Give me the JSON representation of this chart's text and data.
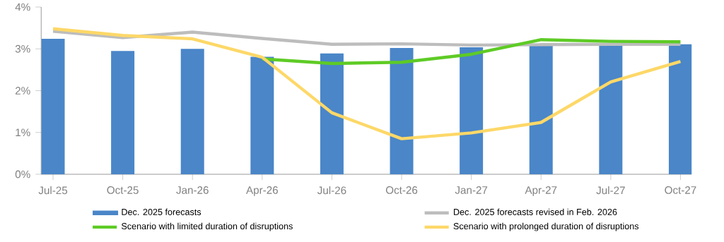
{
  "chart_data": {
    "type": "bar",
    "categories": [
      "Jul-25",
      "Oct-25",
      "Jan-26",
      "Apr-26",
      "Jul-26",
      "Oct-26",
      "Jan-27",
      "Apr-27",
      "Jul-27",
      "Oct-27"
    ],
    "series": [
      {
        "name": "Dec. 2025 forecasts",
        "color": "#4a86c8",
        "values": [
          3.24,
          2.95,
          3.0,
          2.81,
          2.89,
          3.02,
          3.04,
          3.07,
          3.07,
          3.11
        ]
      },
      {
        "name": "Dec. 2025 forecasts revised in Feb. 2026",
        "type": "line",
        "color": "#bdbdbd",
        "values": [
          3.42,
          3.27,
          3.4,
          3.25,
          3.11,
          3.12,
          3.09,
          3.1,
          3.11,
          3.11
        ]
      },
      {
        "name": "Scenario with limited duration of disruptions",
        "type": "line",
        "color": "#5ecb25",
        "values": [
          null,
          null,
          null,
          2.76,
          2.65,
          2.68,
          2.87,
          3.22,
          3.18,
          3.17
        ]
      },
      {
        "name": "Scenario with prolonged duration of disruptions",
        "type": "line",
        "color": "#fdd868",
        "values": [
          3.48,
          3.32,
          3.24,
          2.8,
          1.47,
          0.85,
          0.99,
          1.24,
          2.21,
          2.7
        ]
      }
    ],
    "ylim": [
      0,
      4
    ],
    "yticks": [
      {
        "value": 0,
        "label": "0%"
      },
      {
        "value": 1,
        "label": "1%"
      },
      {
        "value": 2,
        "label": "2%"
      },
      {
        "value": 3,
        "label": "3%"
      },
      {
        "value": 4,
        "label": "4%"
      }
    ],
    "grid": false,
    "legend": "bottom",
    "marker": "none",
    "line_style": "solid"
  }
}
